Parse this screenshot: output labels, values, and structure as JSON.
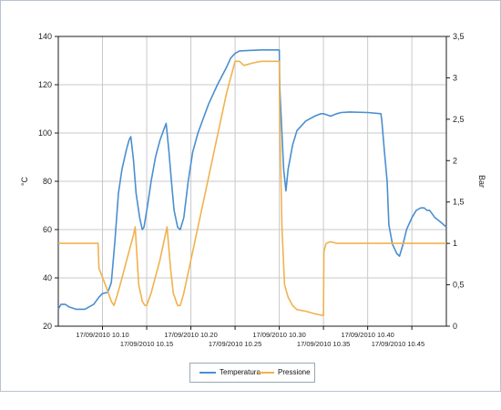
{
  "chart_data": {
    "type": "line",
    "y_left": {
      "label": "°C",
      "ylim": [
        20,
        140
      ],
      "ticks": [
        20,
        40,
        60,
        80,
        100,
        120,
        140
      ]
    },
    "y_right": {
      "label": "Bar",
      "ylim": [
        0,
        3.5
      ],
      "ticks": [
        "0",
        "0,5",
        "1",
        "1,5",
        "2",
        "2,5",
        "3",
        "3,5"
      ]
    },
    "x_axis": {
      "range_minutes": [
        0,
        40.5
      ],
      "ticks": [
        {
          "label": "17/09/2010 10.10",
          "t": 5,
          "row": 1
        },
        {
          "label": "17/09/2010 10.15",
          "t": 10,
          "row": 2
        },
        {
          "label": "17/09/2010 10.20",
          "t": 15,
          "row": 1
        },
        {
          "label": "17/09/2010 10.25",
          "t": 20,
          "row": 2
        },
        {
          "label": "17/09/2010 10.30",
          "t": 25,
          "row": 1
        },
        {
          "label": "17/09/2010 10.35",
          "t": 30,
          "row": 2
        },
        {
          "label": "17/09/2010 10.40",
          "t": 35,
          "row": 1
        },
        {
          "label": "17/09/2010 10.45",
          "t": 40,
          "row": 2
        }
      ]
    },
    "grid": true,
    "legend_position": "bottom-center",
    "series": [
      {
        "name": "Temperatura",
        "axis": "left",
        "color": "#4a8fd0",
        "points": [
          [
            0,
            27
          ],
          [
            0.3,
            29
          ],
          [
            0.8,
            29
          ],
          [
            1.2,
            28
          ],
          [
            2,
            27
          ],
          [
            3,
            27
          ],
          [
            4,
            29
          ],
          [
            4.6,
            32
          ],
          [
            5,
            33.5
          ],
          [
            5.6,
            34
          ],
          [
            6,
            38
          ],
          [
            6.4,
            55
          ],
          [
            6.8,
            75
          ],
          [
            7.2,
            85
          ],
          [
            7.7,
            93
          ],
          [
            8,
            97
          ],
          [
            8.2,
            98.5
          ],
          [
            8.5,
            89
          ],
          [
            8.8,
            75
          ],
          [
            9.2,
            65
          ],
          [
            9.5,
            60
          ],
          [
            9.7,
            61
          ],
          [
            10.1,
            70
          ],
          [
            10.5,
            80
          ],
          [
            11,
            90
          ],
          [
            11.5,
            97
          ],
          [
            12,
            102
          ],
          [
            12.2,
            104
          ],
          [
            12.5,
            93
          ],
          [
            12.8,
            80
          ],
          [
            13.1,
            68
          ],
          [
            13.5,
            61
          ],
          [
            13.8,
            60
          ],
          [
            14.2,
            65
          ],
          [
            14.7,
            80
          ],
          [
            15.2,
            92
          ],
          [
            15.8,
            100
          ],
          [
            16.5,
            107
          ],
          [
            17,
            112
          ],
          [
            18,
            120
          ],
          [
            19,
            127
          ],
          [
            19.5,
            131
          ],
          [
            20,
            133
          ],
          [
            20.5,
            134
          ],
          [
            21.5,
            134.2
          ],
          [
            23,
            134.4
          ],
          [
            25,
            134.4
          ],
          [
            25.05,
            119
          ],
          [
            25.3,
            100
          ],
          [
            25.5,
            85
          ],
          [
            25.75,
            76
          ],
          [
            26,
            85
          ],
          [
            26.5,
            95
          ],
          [
            27,
            101
          ],
          [
            28,
            105
          ],
          [
            29,
            107
          ],
          [
            29.7,
            108
          ],
          [
            30,
            108
          ],
          [
            30.8,
            107
          ],
          [
            31.5,
            108
          ],
          [
            32,
            108.5
          ],
          [
            33,
            108.7
          ],
          [
            35,
            108.5
          ],
          [
            36.5,
            108
          ],
          [
            36.6,
            105
          ],
          [
            36.9,
            92
          ],
          [
            37.2,
            80
          ],
          [
            37.4,
            62
          ],
          [
            37.8,
            54
          ],
          [
            38.3,
            50
          ],
          [
            38.6,
            49
          ],
          [
            39,
            54
          ],
          [
            39.4,
            60
          ],
          [
            40,
            65
          ],
          [
            40.5,
            68
          ],
          [
            41,
            69
          ],
          [
            41.4,
            69
          ],
          [
            41.7,
            68
          ],
          [
            42,
            68
          ],
          [
            42.6,
            65
          ],
          [
            43.3,
            63
          ],
          [
            43.9,
            61
          ]
        ]
      },
      {
        "name": "Pressione",
        "axis": "right",
        "color": "#f0b24e",
        "points": [
          [
            0,
            1.0
          ],
          [
            4.5,
            1.0
          ],
          [
            4.6,
            0.7
          ],
          [
            5.5,
            0.45
          ],
          [
            6,
            0.3
          ],
          [
            6.3,
            0.25
          ],
          [
            6.6,
            0.35
          ],
          [
            7,
            0.5
          ],
          [
            8,
            0.9
          ],
          [
            8.5,
            1.1
          ],
          [
            8.7,
            1.2
          ],
          [
            9.1,
            0.5
          ],
          [
            9.5,
            0.3
          ],
          [
            9.8,
            0.25
          ],
          [
            10,
            0.25
          ],
          [
            10.5,
            0.4
          ],
          [
            11.5,
            0.8
          ],
          [
            12.3,
            1.2
          ],
          [
            12.7,
            0.7
          ],
          [
            13,
            0.4
          ],
          [
            13.5,
            0.25
          ],
          [
            13.8,
            0.25
          ],
          [
            14.2,
            0.4
          ],
          [
            15,
            0.8
          ],
          [
            16,
            1.3
          ],
          [
            17,
            1.8
          ],
          [
            18,
            2.3
          ],
          [
            19,
            2.8
          ],
          [
            19.5,
            3.0
          ],
          [
            20,
            3.2
          ],
          [
            20.5,
            3.2
          ],
          [
            21,
            3.15
          ],
          [
            22,
            3.18
          ],
          [
            23,
            3.2
          ],
          [
            24,
            3.2
          ],
          [
            25,
            3.2
          ],
          [
            25.05,
            2.5
          ],
          [
            25.3,
            1.2
          ],
          [
            25.6,
            0.5
          ],
          [
            26,
            0.35
          ],
          [
            26.5,
            0.25
          ],
          [
            27,
            0.2
          ],
          [
            28,
            0.18
          ],
          [
            29,
            0.15
          ],
          [
            29.9,
            0.13
          ],
          [
            30,
            0.13
          ],
          [
            30.05,
            0.9
          ],
          [
            30.3,
            1.0
          ],
          [
            30.8,
            1.02
          ],
          [
            31.5,
            1.0
          ],
          [
            33,
            1.0
          ],
          [
            35,
            1.0
          ],
          [
            37,
            1.0
          ],
          [
            43.9,
            1.0
          ]
        ]
      }
    ]
  },
  "legend": [
    {
      "label": "Temperatura",
      "color": "#4a8fd0"
    },
    {
      "label": "Pressione",
      "color": "#f0b24e"
    }
  ]
}
